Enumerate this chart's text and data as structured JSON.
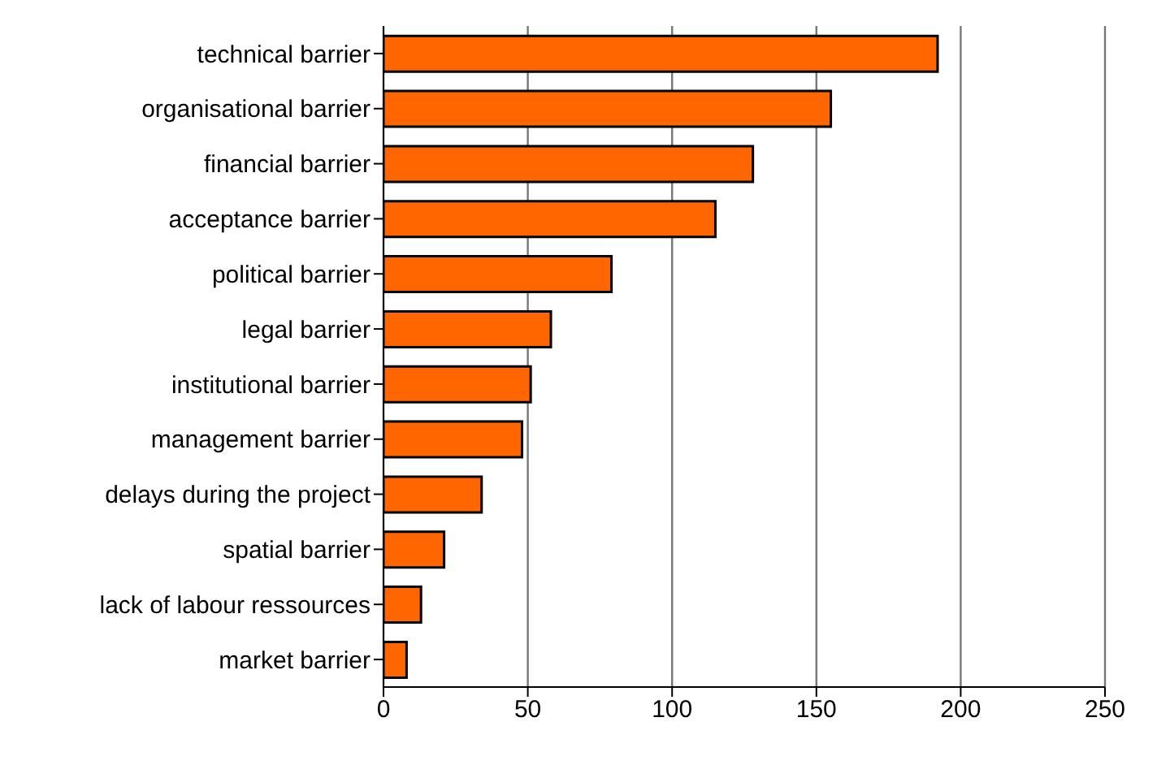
{
  "chart_data": {
    "type": "bar",
    "orientation": "horizontal",
    "categories": [
      "technical barrier",
      "organisational barrier",
      "financial barrier",
      "acceptance barrier",
      "political barrier",
      "legal barrier",
      "institutional barrier",
      "management barrier",
      "delays during the project",
      "spatial barrier",
      "lack of labour ressources",
      "market barrier"
    ],
    "values": [
      192,
      155,
      128,
      115,
      79,
      58,
      51,
      48,
      34,
      21,
      13,
      8
    ],
    "color": "#ff6600",
    "xlim": [
      0,
      250
    ],
    "xticks": [
      0,
      50,
      100,
      150,
      200,
      250
    ],
    "grid": "x",
    "legend": false
  }
}
